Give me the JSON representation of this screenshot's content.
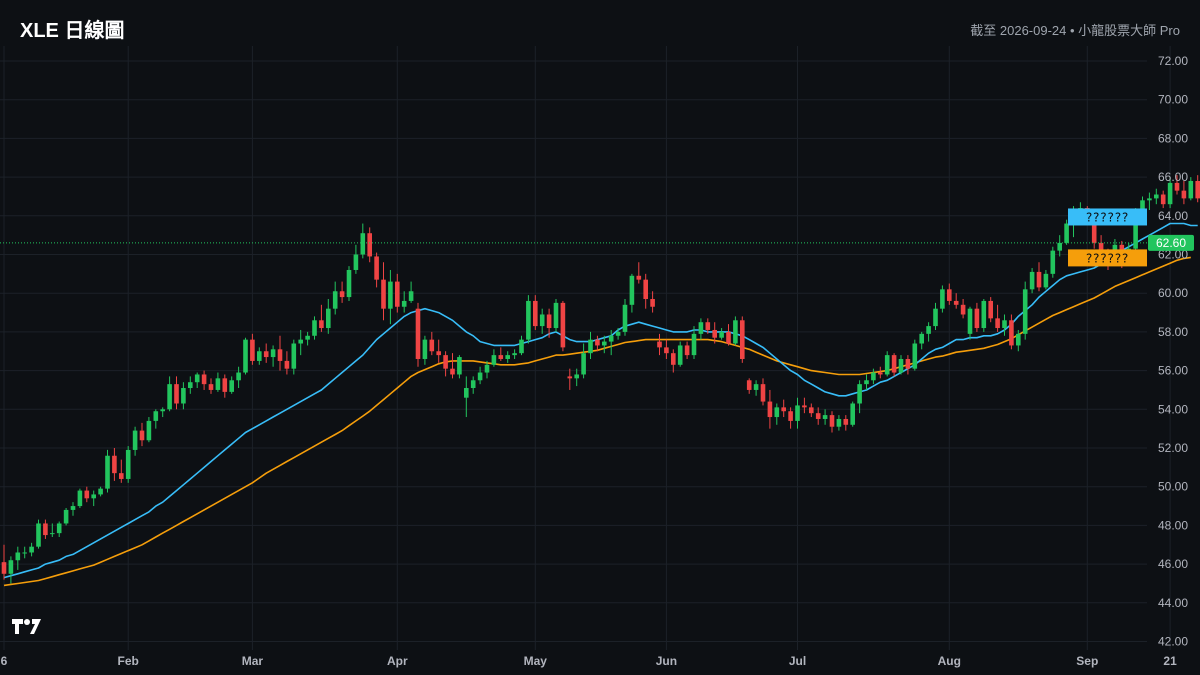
{
  "header": {
    "title": "XLE 日線圖",
    "subtitle": "截至 2026-09-24 • 小龍股票大師 Pro"
  },
  "chart_data": {
    "type": "candlestick",
    "ticker": "XLE",
    "interval": "daily",
    "ylim": [
      42.0,
      72.0
    ],
    "y_ticks": [
      "72.00",
      "70.00",
      "68.00",
      "66.00",
      "64.00",
      "62.00",
      "60.00",
      "58.00",
      "56.00",
      "54.00",
      "52.00",
      "50.00",
      "48.00",
      "46.00",
      "44.00",
      "42.00"
    ],
    "x_ticks": [
      {
        "label": "6",
        "index": 0
      },
      {
        "label": "Feb",
        "index": 18
      },
      {
        "label": "Mar",
        "index": 36
      },
      {
        "label": "Apr",
        "index": 57
      },
      {
        "label": "May",
        "index": 77
      },
      {
        "label": "Jun",
        "index": 96
      },
      {
        "label": "Jul",
        "index": 115
      },
      {
        "label": "Aug",
        "index": 137
      },
      {
        "label": "Sep",
        "index": 157
      },
      {
        "label": "21",
        "index": 169
      }
    ],
    "last_price": 62.6,
    "last_price_label": "62.60",
    "ma_labels": {
      "fast": "??????",
      "slow": "??????"
    },
    "colors": {
      "up": "#22c55e",
      "down": "#ef4444",
      "ma_fast": "#38bdf8",
      "ma_slow": "#f59e0b",
      "grid": "#1c2128",
      "background": "#0d1014"
    },
    "candles": [
      [
        46.1,
        47.0,
        45.2,
        45.5
      ],
      [
        45.5,
        46.4,
        45.0,
        46.2
      ],
      [
        46.2,
        46.9,
        45.7,
        46.6
      ],
      [
        46.6,
        46.9,
        46.3,
        46.6
      ],
      [
        46.6,
        47.1,
        46.4,
        46.9
      ],
      [
        46.9,
        48.3,
        46.8,
        48.1
      ],
      [
        48.1,
        48.3,
        47.3,
        47.5
      ],
      [
        47.6,
        48.1,
        47.4,
        47.6
      ],
      [
        47.6,
        48.2,
        47.4,
        48.1
      ],
      [
        48.1,
        48.9,
        48.0,
        48.8
      ],
      [
        48.8,
        49.2,
        48.5,
        49.0
      ],
      [
        49.0,
        49.9,
        48.9,
        49.8
      ],
      [
        49.8,
        50.0,
        49.2,
        49.4
      ],
      [
        49.4,
        49.8,
        49.0,
        49.6
      ],
      [
        49.6,
        50.0,
        49.5,
        49.9
      ],
      [
        49.9,
        51.9,
        49.7,
        51.6
      ],
      [
        51.6,
        52.0,
        50.3,
        50.7
      ],
      [
        50.7,
        51.4,
        50.2,
        50.4
      ],
      [
        50.4,
        52.1,
        50.2,
        51.9
      ],
      [
        51.9,
        53.1,
        51.6,
        52.9
      ],
      [
        52.9,
        53.3,
        52.1,
        52.4
      ],
      [
        52.4,
        53.6,
        52.3,
        53.4
      ],
      [
        53.4,
        54.0,
        53.0,
        53.9
      ],
      [
        53.9,
        54.1,
        53.6,
        54.0
      ],
      [
        54.0,
        55.7,
        53.9,
        55.3
      ],
      [
        55.3,
        55.7,
        54.0,
        54.3
      ],
      [
        54.3,
        55.4,
        54.0,
        55.1
      ],
      [
        55.1,
        55.7,
        54.8,
        55.4
      ],
      [
        55.4,
        55.9,
        55.1,
        55.8
      ],
      [
        55.8,
        56.0,
        55.0,
        55.3
      ],
      [
        55.3,
        55.6,
        54.8,
        55.0
      ],
      [
        55.0,
        55.9,
        54.9,
        55.6
      ],
      [
        55.6,
        55.8,
        54.6,
        54.9
      ],
      [
        54.9,
        55.7,
        54.8,
        55.5
      ],
      [
        55.5,
        56.2,
        55.1,
        55.9
      ],
      [
        55.9,
        57.7,
        55.8,
        57.6
      ],
      [
        57.6,
        57.9,
        56.3,
        56.5
      ],
      [
        56.5,
        57.2,
        56.3,
        57.0
      ],
      [
        57.0,
        57.4,
        56.4,
        56.7
      ],
      [
        56.7,
        57.3,
        56.2,
        57.1
      ],
      [
        57.1,
        57.8,
        56.0,
        56.5
      ],
      [
        56.5,
        57.0,
        55.8,
        56.1
      ],
      [
        56.1,
        57.6,
        55.8,
        57.4
      ],
      [
        57.4,
        58.1,
        56.8,
        57.6
      ],
      [
        57.6,
        58.0,
        57.3,
        57.8
      ],
      [
        57.8,
        58.8,
        57.6,
        58.6
      ],
      [
        58.6,
        59.4,
        58.0,
        58.2
      ],
      [
        58.2,
        59.7,
        57.9,
        59.2
      ],
      [
        59.2,
        60.6,
        58.9,
        60.1
      ],
      [
        60.1,
        60.6,
        59.5,
        59.8
      ],
      [
        59.8,
        61.4,
        59.6,
        61.2
      ],
      [
        61.2,
        62.5,
        61.0,
        62.0
      ],
      [
        62.0,
        63.6,
        61.8,
        63.1
      ],
      [
        63.1,
        63.4,
        61.6,
        61.9
      ],
      [
        61.9,
        62.1,
        60.3,
        60.7
      ],
      [
        60.7,
        61.6,
        58.6,
        59.2
      ],
      [
        59.2,
        61.2,
        58.4,
        60.6
      ],
      [
        60.6,
        61.0,
        59.0,
        59.3
      ],
      [
        59.3,
        60.1,
        59.0,
        59.6
      ],
      [
        59.6,
        60.6,
        59.5,
        60.1
      ],
      [
        59.2,
        59.5,
        56.2,
        56.6
      ],
      [
        56.6,
        57.8,
        56.3,
        57.6
      ],
      [
        57.6,
        58.0,
        56.8,
        57.0
      ],
      [
        57.0,
        57.6,
        56.4,
        56.8
      ],
      [
        56.8,
        57.0,
        55.7,
        56.1
      ],
      [
        56.1,
        56.9,
        55.6,
        55.8
      ],
      [
        55.8,
        56.8,
        55.6,
        56.7
      ],
      [
        54.6,
        55.7,
        53.6,
        55.1
      ],
      [
        55.1,
        55.7,
        54.8,
        55.5
      ],
      [
        55.5,
        56.2,
        55.3,
        55.9
      ],
      [
        55.9,
        56.5,
        55.6,
        56.3
      ],
      [
        56.3,
        57.1,
        56.2,
        56.8
      ],
      [
        56.8,
        57.2,
        56.5,
        56.6
      ],
      [
        56.6,
        57.0,
        56.4,
        56.8
      ],
      [
        56.8,
        57.1,
        56.6,
        56.9
      ],
      [
        56.9,
        57.8,
        56.8,
        57.6
      ],
      [
        57.6,
        59.9,
        57.4,
        59.6
      ],
      [
        59.6,
        59.9,
        58.1,
        58.3
      ],
      [
        58.3,
        59.2,
        57.9,
        58.9
      ],
      [
        58.9,
        59.2,
        57.7,
        58.2
      ],
      [
        58.2,
        59.7,
        58.0,
        59.5
      ],
      [
        59.5,
        59.6,
        57.0,
        57.2
      ],
      [
        55.7,
        56.1,
        55.0,
        55.6
      ],
      [
        55.6,
        56.1,
        55.2,
        55.8
      ],
      [
        55.8,
        57.4,
        55.6,
        56.9
      ],
      [
        56.9,
        58.0,
        56.6,
        57.6
      ],
      [
        57.6,
        57.8,
        57.0,
        57.3
      ],
      [
        57.3,
        57.8,
        56.9,
        57.5
      ],
      [
        57.5,
        58.1,
        56.8,
        57.8
      ],
      [
        57.8,
        58.2,
        57.6,
        58.0
      ],
      [
        58.0,
        59.7,
        57.8,
        59.4
      ],
      [
        59.4,
        61.0,
        59.0,
        60.9
      ],
      [
        60.9,
        61.6,
        60.5,
        60.7
      ],
      [
        60.7,
        61.0,
        59.2,
        59.7
      ],
      [
        59.7,
        60.1,
        59.0,
        59.3
      ],
      [
        57.5,
        57.9,
        56.8,
        57.2
      ],
      [
        57.2,
        57.6,
        56.6,
        56.9
      ],
      [
        56.9,
        57.1,
        55.9,
        56.3
      ],
      [
        56.3,
        57.5,
        56.2,
        57.3
      ],
      [
        57.3,
        57.5,
        56.6,
        56.8
      ],
      [
        56.8,
        58.3,
        56.6,
        57.9
      ],
      [
        57.9,
        58.7,
        57.6,
        58.5
      ],
      [
        58.5,
        58.7,
        57.9,
        58.1
      ],
      [
        58.1,
        58.5,
        57.4,
        57.7
      ],
      [
        57.7,
        58.2,
        57.6,
        58.0
      ],
      [
        58.0,
        58.4,
        57.3,
        57.4
      ],
      [
        57.4,
        58.8,
        57.3,
        58.6
      ],
      [
        58.6,
        58.8,
        56.4,
        56.6
      ],
      [
        55.5,
        55.6,
        54.8,
        55.0
      ],
      [
        55.0,
        55.5,
        54.7,
        55.3
      ],
      [
        55.3,
        55.6,
        54.2,
        54.4
      ],
      [
        54.4,
        55.0,
        53.0,
        53.6
      ],
      [
        53.6,
        54.3,
        53.2,
        54.1
      ],
      [
        54.1,
        54.5,
        53.6,
        53.9
      ],
      [
        53.9,
        54.1,
        53.0,
        53.4
      ],
      [
        53.4,
        54.6,
        53.0,
        54.2
      ],
      [
        54.2,
        54.6,
        53.8,
        54.1
      ],
      [
        54.1,
        54.3,
        53.6,
        53.8
      ],
      [
        53.8,
        54.1,
        53.2,
        53.5
      ],
      [
        53.5,
        54.0,
        53.2,
        53.7
      ],
      [
        53.7,
        53.9,
        52.8,
        53.1
      ],
      [
        53.1,
        53.7,
        52.9,
        53.5
      ],
      [
        53.5,
        53.7,
        52.9,
        53.2
      ],
      [
        53.2,
        54.4,
        53.1,
        54.3
      ],
      [
        54.3,
        55.5,
        53.8,
        55.3
      ],
      [
        55.3,
        55.8,
        55.0,
        55.5
      ],
      [
        55.5,
        56.1,
        55.3,
        55.9
      ],
      [
        55.9,
        56.2,
        55.6,
        55.8
      ],
      [
        55.8,
        57.0,
        55.7,
        56.8
      ],
      [
        56.8,
        56.9,
        55.7,
        55.9
      ],
      [
        55.9,
        56.8,
        55.8,
        56.6
      ],
      [
        56.6,
        56.8,
        55.8,
        56.1
      ],
      [
        56.1,
        57.6,
        56.0,
        57.4
      ],
      [
        57.4,
        58.0,
        57.1,
        57.9
      ],
      [
        57.9,
        58.5,
        57.5,
        58.3
      ],
      [
        58.3,
        59.5,
        58.1,
        59.2
      ],
      [
        59.2,
        60.4,
        59.0,
        60.2
      ],
      [
        60.2,
        60.5,
        59.4,
        59.6
      ],
      [
        59.6,
        60.0,
        59.2,
        59.4
      ],
      [
        59.4,
        59.7,
        58.7,
        58.9
      ],
      [
        57.9,
        59.3,
        57.6,
        59.2
      ],
      [
        59.2,
        59.5,
        58.0,
        58.2
      ],
      [
        58.2,
        59.7,
        58.0,
        59.6
      ],
      [
        59.6,
        59.8,
        58.5,
        58.7
      ],
      [
        58.7,
        59.4,
        58.0,
        58.2
      ],
      [
        58.2,
        58.9,
        57.8,
        58.6
      ],
      [
        58.6,
        58.9,
        57.1,
        57.3
      ],
      [
        57.3,
        58.1,
        57.0,
        57.9
      ],
      [
        57.9,
        60.6,
        57.6,
        60.2
      ],
      [
        60.2,
        61.3,
        60.0,
        61.1
      ],
      [
        61.1,
        61.6,
        60.1,
        60.3
      ],
      [
        60.3,
        61.2,
        60.2,
        61.0
      ],
      [
        61.0,
        62.4,
        60.8,
        62.2
      ],
      [
        62.2,
        63.0,
        61.9,
        62.6
      ],
      [
        62.6,
        63.8,
        62.5,
        63.6
      ],
      [
        63.6,
        64.5,
        62.9,
        64.1
      ],
      [
        64.1,
        64.7,
        63.8,
        64.4
      ],
      [
        64.4,
        64.5,
        63.6,
        63.8
      ],
      [
        63.8,
        64.0,
        62.3,
        62.6
      ],
      [
        62.6,
        63.0,
        61.5,
        61.9
      ],
      [
        61.9,
        62.3,
        61.2,
        61.6
      ],
      [
        61.6,
        62.8,
        61.4,
        62.5
      ],
      [
        62.5,
        62.7,
        61.3,
        62.0
      ],
      [
        62.0,
        62.6,
        61.6,
        62.3
      ],
      [
        62.3,
        64.4,
        62.1,
        64.0
      ],
      [
        64.0,
        65.0,
        63.8,
        64.8
      ],
      [
        64.8,
        65.2,
        64.3,
        64.9
      ],
      [
        64.9,
        65.4,
        64.6,
        65.1
      ],
      [
        65.1,
        65.3,
        64.4,
        64.6
      ],
      [
        64.6,
        66.0,
        64.4,
        65.7
      ],
      [
        65.7,
        66.1,
        65.1,
        65.3
      ],
      [
        65.3,
        65.8,
        64.6,
        64.9
      ],
      [
        64.9,
        66.0,
        64.8,
        65.8
      ],
      [
        65.8,
        66.1,
        64.7,
        64.9
      ],
      [
        64.9,
        65.2,
        63.8,
        64.1
      ],
      [
        64.1,
        64.5,
        63.9,
        64.2
      ],
      [
        64.2,
        64.6,
        63.2,
        63.6
      ],
      [
        63.6,
        63.8,
        62.4,
        62.8
      ],
      [
        62.8,
        63.1,
        62.2,
        62.4
      ],
      [
        62.4,
        63.3,
        62.3,
        63.1
      ],
      [
        63.1,
        63.4,
        62.3,
        62.6
      ]
    ],
    "ma_fast_values": [
      45.3,
      45.4,
      45.5,
      45.6,
      45.7,
      45.8,
      46.0,
      46.1,
      46.2,
      46.4,
      46.5,
      46.7,
      46.9,
      47.1,
      47.3,
      47.5,
      47.7,
      47.9,
      48.1,
      48.3,
      48.5,
      48.7,
      49.0,
      49.2,
      49.5,
      49.8,
      50.1,
      50.4,
      50.7,
      51.0,
      51.3,
      51.6,
      51.9,
      52.2,
      52.5,
      52.8,
      53.0,
      53.2,
      53.4,
      53.6,
      53.8,
      54.0,
      54.2,
      54.4,
      54.6,
      54.8,
      55.0,
      55.3,
      55.6,
      55.9,
      56.2,
      56.5,
      56.8,
      57.2,
      57.6,
      57.9,
      58.2,
      58.5,
      58.8,
      59.0,
      59.1,
      59.2,
      59.1,
      59.0,
      58.8,
      58.6,
      58.3,
      58.0,
      57.8,
      57.5,
      57.4,
      57.3,
      57.3,
      57.3,
      57.3,
      57.4,
      57.5,
      57.6,
      57.7,
      57.9,
      58.0,
      57.8,
      57.6,
      57.5,
      57.5,
      57.5,
      57.6,
      57.7,
      57.8,
      58.1,
      58.3,
      58.4,
      58.5,
      58.4,
      58.3,
      58.2,
      58.1,
      58.0,
      58.0,
      58.0,
      58.1,
      58.1,
      58.0,
      58.0,
      58.0,
      58.0,
      57.9,
      57.8,
      57.6,
      57.4,
      57.2,
      56.9,
      56.6,
      56.3,
      56.0,
      55.8,
      55.5,
      55.3,
      55.1,
      54.9,
      54.8,
      54.7,
      54.7,
      54.8,
      54.9,
      55.0,
      55.2,
      55.4,
      55.5,
      55.7,
      55.9,
      56.1,
      56.3,
      56.6,
      56.9,
      57.1,
      57.2,
      57.4,
      57.6,
      57.6,
      57.7,
      57.7,
      57.8,
      57.8,
      57.9,
      58.1,
      58.4,
      58.8,
      59.1,
      59.4,
      59.8,
      60.1,
      60.4,
      60.7,
      60.9,
      61.0,
      61.1,
      61.2,
      61.3,
      61.5,
      61.7,
      62.0,
      62.2,
      62.4,
      62.6,
      62.8,
      63.0,
      63.2,
      63.4,
      63.6,
      63.6,
      63.6,
      63.5,
      63.5
    ],
    "ma_slow_values": [
      44.9,
      44.95,
      45.0,
      45.05,
      45.1,
      45.15,
      45.25,
      45.35,
      45.45,
      45.55,
      45.65,
      45.75,
      45.85,
      45.95,
      46.1,
      46.25,
      46.4,
      46.55,
      46.7,
      46.85,
      47.0,
      47.2,
      47.4,
      47.6,
      47.8,
      48.0,
      48.2,
      48.4,
      48.6,
      48.8,
      49.0,
      49.2,
      49.4,
      49.6,
      49.8,
      50.0,
      50.2,
      50.45,
      50.7,
      50.9,
      51.1,
      51.3,
      51.5,
      51.7,
      51.9,
      52.1,
      52.3,
      52.5,
      52.7,
      52.9,
      53.15,
      53.4,
      53.65,
      53.9,
      54.2,
      54.5,
      54.8,
      55.1,
      55.4,
      55.7,
      55.9,
      56.05,
      56.2,
      56.35,
      56.45,
      56.5,
      56.5,
      56.5,
      56.5,
      56.45,
      56.4,
      56.35,
      56.3,
      56.3,
      56.3,
      56.35,
      56.4,
      56.5,
      56.6,
      56.7,
      56.8,
      56.8,
      56.85,
      56.9,
      56.95,
      57.0,
      57.05,
      57.15,
      57.25,
      57.35,
      57.45,
      57.5,
      57.55,
      57.6,
      57.6,
      57.6,
      57.6,
      57.6,
      57.6,
      57.6,
      57.6,
      57.6,
      57.6,
      57.55,
      57.5,
      57.4,
      57.3,
      57.2,
      57.1,
      56.95,
      56.8,
      56.65,
      56.5,
      56.4,
      56.3,
      56.2,
      56.1,
      56.0,
      55.95,
      55.9,
      55.85,
      55.8,
      55.8,
      55.8,
      55.8,
      55.85,
      55.9,
      55.95,
      56.0,
      56.1,
      56.2,
      56.3,
      56.4,
      56.5,
      56.6,
      56.7,
      56.75,
      56.85,
      56.95,
      57.0,
      57.05,
      57.1,
      57.15,
      57.25,
      57.35,
      57.5,
      57.65,
      57.85,
      58.05,
      58.25,
      58.45,
      58.65,
      58.85,
      59.0,
      59.15,
      59.3,
      59.45,
      59.6,
      59.75,
      59.95,
      60.15,
      60.35,
      60.5,
      60.65,
      60.8,
      60.95,
      61.1,
      61.25,
      61.4,
      61.55,
      61.7,
      61.8,
      61.85
    ]
  }
}
